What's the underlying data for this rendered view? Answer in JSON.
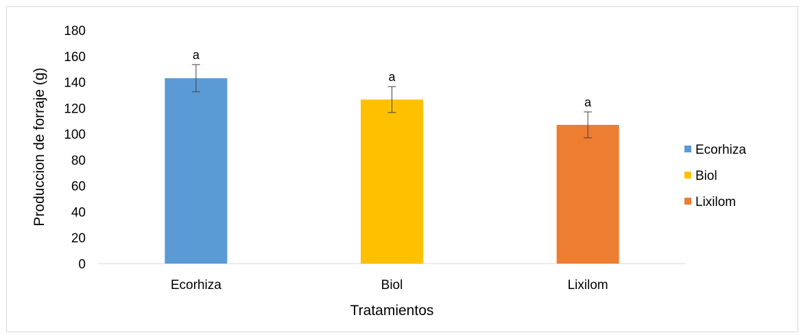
{
  "chart_data": {
    "type": "bar",
    "title": "",
    "xlabel": "Tratamientos",
    "ylabel": "Produccion de forraje (g)",
    "ylim": [
      0,
      180
    ],
    "yticks": [
      "0",
      "20",
      "40",
      "60",
      "80",
      "100",
      "120",
      "140",
      "160",
      "180"
    ],
    "categories": [
      "Ecorhiza",
      "Biol",
      "Lixilom"
    ],
    "values": [
      143,
      126.5,
      107
    ],
    "error": [
      10.5,
      10,
      10
    ],
    "significance_labels": [
      "a",
      "a",
      "a"
    ],
    "colors": [
      "#5b9bd5",
      "#ffc000",
      "#ed7d31"
    ],
    "legend": {
      "position": "right",
      "entries": [
        "Ecorhiza",
        "Biol",
        "Lixilom"
      ]
    },
    "grid": false
  }
}
